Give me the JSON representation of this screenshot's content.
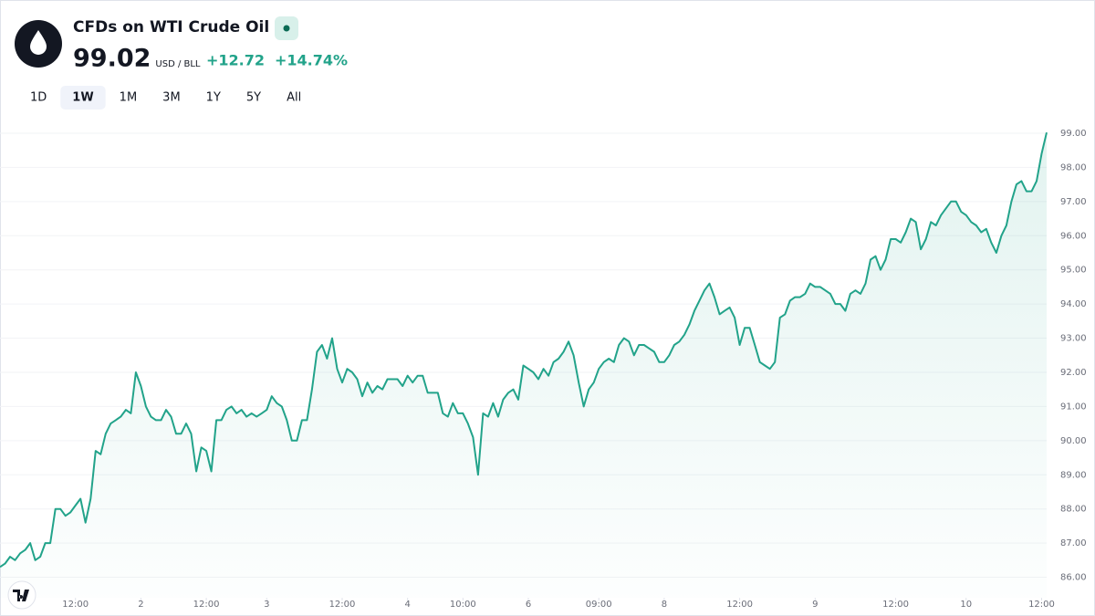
{
  "header": {
    "title": "CFDs on WTI Crude Oil",
    "price": "99.02",
    "unit": "USD / BLL",
    "change": "+12.72",
    "change_percent": "+14.74%"
  },
  "ranges": [
    "1D",
    "1W",
    "1M",
    "3M",
    "1Y",
    "5Y",
    "All"
  ],
  "selected_range": 1,
  "chart_data": {
    "type": "area",
    "color": "#22a38a",
    "values": [
      86.3,
      86.4,
      86.6,
      86.5,
      86.7,
      86.8,
      87.0,
      86.5,
      86.6,
      87.0,
      87.0,
      88.0,
      88.0,
      87.8,
      87.9,
      88.1,
      88.3,
      87.6,
      88.3,
      89.7,
      89.6,
      90.2,
      90.5,
      90.6,
      90.7,
      90.9,
      90.8,
      92.0,
      91.6,
      91.0,
      90.7,
      90.6,
      90.6,
      90.9,
      90.7,
      90.2,
      90.2,
      90.5,
      90.2,
      89.1,
      89.8,
      89.7,
      89.1,
      90.6,
      90.6,
      90.9,
      91.0,
      90.8,
      90.9,
      90.7,
      90.8,
      90.7,
      90.8,
      90.9,
      91.3,
      91.1,
      91.0,
      90.6,
      90.0,
      90.0,
      90.6,
      90.6,
      91.5,
      92.6,
      92.8,
      92.4,
      93.0,
      92.1,
      91.7,
      92.1,
      92.0,
      91.8,
      91.3,
      91.7,
      91.4,
      91.6,
      91.5,
      91.8,
      91.8,
      91.8,
      91.6,
      91.9,
      91.7,
      91.9,
      91.9,
      91.4,
      91.4,
      91.4,
      90.8,
      90.7,
      91.1,
      90.8,
      90.8,
      90.5,
      90.1,
      89.0,
      90.8,
      90.7,
      91.1,
      90.7,
      91.2,
      91.4,
      91.5,
      91.2,
      92.2,
      92.1,
      92.0,
      91.8,
      92.1,
      91.9,
      92.3,
      92.4,
      92.6,
      92.9,
      92.5,
      91.7,
      91.0,
      91.5,
      91.7,
      92.1,
      92.3,
      92.4,
      92.3,
      92.8,
      93.0,
      92.9,
      92.5,
      92.8,
      92.8,
      92.7,
      92.6,
      92.3,
      92.3,
      92.5,
      92.8,
      92.9,
      93.1,
      93.4,
      93.8,
      94.1,
      94.4,
      94.6,
      94.2,
      93.7,
      93.8,
      93.9,
      93.6,
      92.8,
      93.3,
      93.3,
      92.8,
      92.3,
      92.2,
      92.1,
      92.3,
      93.6,
      93.7,
      94.1,
      94.2,
      94.2,
      94.3,
      94.6,
      94.5,
      94.5,
      94.4,
      94.3,
      94.0,
      94.0,
      93.8,
      94.3,
      94.4,
      94.3,
      94.6,
      95.3,
      95.4,
      95.0,
      95.3,
      95.9,
      95.9,
      95.8,
      96.1,
      96.5,
      96.4,
      95.6,
      95.9,
      96.4,
      96.3,
      96.6,
      96.8,
      97.0,
      97.0,
      96.7,
      96.6,
      96.4,
      96.3,
      96.1,
      96.2,
      95.8,
      95.5,
      96.0,
      96.3,
      97.0,
      97.5,
      97.6,
      97.3,
      97.3,
      97.6,
      98.4,
      99.02
    ],
    "xlim": [
      0,
      208
    ],
    "xticks": [
      {
        "value": 15,
        "label": "12:00"
      },
      {
        "value": 28,
        "label": "2"
      },
      {
        "value": 41,
        "label": "12:00"
      },
      {
        "value": 53,
        "label": "3"
      },
      {
        "value": 68,
        "label": "12:00"
      },
      {
        "value": 81,
        "label": "4"
      },
      {
        "value": 92,
        "label": "10:00"
      },
      {
        "value": 105,
        "label": "6"
      },
      {
        "value": 119,
        "label": "09:00"
      },
      {
        "value": 132,
        "label": "8"
      },
      {
        "value": 147,
        "label": "12:00"
      },
      {
        "value": 162,
        "label": "9"
      },
      {
        "value": 178,
        "label": "12:00"
      },
      {
        "value": 192,
        "label": "10"
      },
      {
        "value": 207,
        "label": "12:00"
      }
    ],
    "ylim": [
      85.4,
      99.16
    ],
    "yticks": [
      {
        "value": 86,
        "label": "86.00"
      },
      {
        "value": 87,
        "label": "87.00"
      },
      {
        "value": 88,
        "label": "88.00"
      },
      {
        "value": 89,
        "label": "89.00"
      },
      {
        "value": 90,
        "label": "90.00"
      },
      {
        "value": 91,
        "label": "91.00"
      },
      {
        "value": 92,
        "label": "92.00"
      },
      {
        "value": 93,
        "label": "93.00"
      },
      {
        "value": 94,
        "label": "94.00"
      },
      {
        "value": 95,
        "label": "95.00"
      },
      {
        "value": 96,
        "label": "96.00"
      },
      {
        "value": 97,
        "label": "97.00"
      },
      {
        "value": 98,
        "label": "98.00"
      },
      {
        "value": 99,
        "label": "99.00"
      }
    ],
    "grid": true
  }
}
